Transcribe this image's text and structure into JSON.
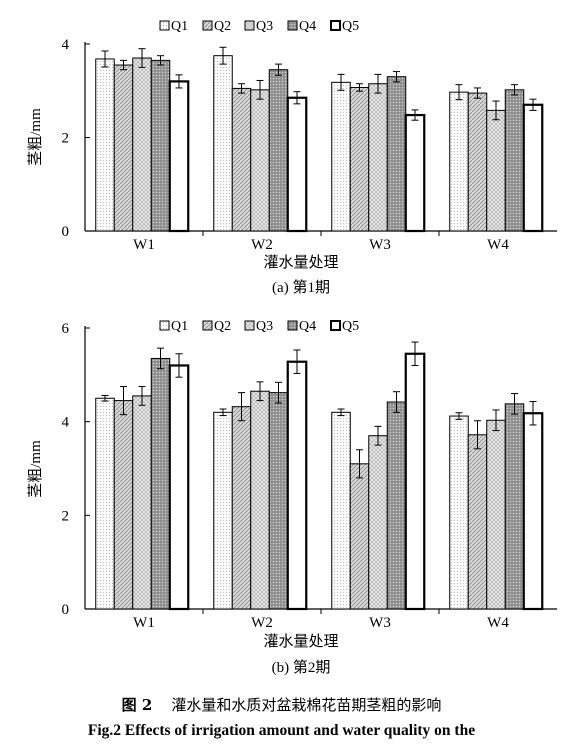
{
  "colors": {
    "Q1": "#ffffff",
    "Q2": "#d4d4d4",
    "Q3": "#e2e2e2",
    "Q4": "#a8a8a8",
    "Q5": "#ffffff"
  },
  "chart_data": [
    {
      "type": "bar",
      "panel": "a",
      "caption": "(a) 第1期",
      "xlabel": "灌水量处理",
      "ylabel": "茎粗/mm",
      "categories": [
        "W1",
        "W2",
        "W3",
        "W4"
      ],
      "ylim": [
        0,
        4
      ],
      "yticks": [
        0,
        2,
        4
      ],
      "legend_position": "top",
      "series": [
        {
          "name": "Q1",
          "values": [
            3.68,
            3.75,
            3.18,
            2.97
          ],
          "errors": [
            0.17,
            0.18,
            0.17,
            0.16
          ]
        },
        {
          "name": "Q2",
          "values": [
            3.55,
            3.05,
            3.07,
            2.95
          ],
          "errors": [
            0.1,
            0.1,
            0.08,
            0.11
          ]
        },
        {
          "name": "Q3",
          "values": [
            3.7,
            3.02,
            3.15,
            2.58
          ],
          "errors": [
            0.2,
            0.2,
            0.2,
            0.2
          ]
        },
        {
          "name": "Q4",
          "values": [
            3.65,
            3.45,
            3.3,
            3.02
          ],
          "errors": [
            0.1,
            0.12,
            0.11,
            0.11
          ]
        },
        {
          "name": "Q5",
          "values": [
            3.2,
            2.85,
            2.48,
            2.7
          ],
          "errors": [
            0.14,
            0.13,
            0.11,
            0.12
          ]
        }
      ]
    },
    {
      "type": "bar",
      "panel": "b",
      "caption": "(b) 第2期",
      "xlabel": "灌水量处理",
      "ylabel": "茎粗/mm",
      "categories": [
        "W1",
        "W2",
        "W3",
        "W4"
      ],
      "ylim": [
        0,
        6
      ],
      "yticks": [
        0,
        2,
        4,
        6
      ],
      "legend_position": "top",
      "series": [
        {
          "name": "Q1",
          "values": [
            4.5,
            4.2,
            4.2,
            4.12
          ],
          "errors": [
            0.06,
            0.07,
            0.07,
            0.07
          ]
        },
        {
          "name": "Q2",
          "values": [
            4.45,
            4.32,
            3.1,
            3.72
          ],
          "errors": [
            0.3,
            0.3,
            0.3,
            0.3
          ]
        },
        {
          "name": "Q3",
          "values": [
            4.55,
            4.65,
            3.7,
            4.03
          ],
          "errors": [
            0.2,
            0.2,
            0.2,
            0.22
          ]
        },
        {
          "name": "Q4",
          "values": [
            5.35,
            4.62,
            4.42,
            4.38
          ],
          "errors": [
            0.22,
            0.22,
            0.22,
            0.22
          ]
        },
        {
          "name": "Q5",
          "values": [
            5.2,
            5.28,
            5.45,
            4.18
          ],
          "errors": [
            0.25,
            0.25,
            0.25,
            0.25
          ]
        }
      ]
    }
  ],
  "caption": {
    "figure_label": "图 2",
    "figure_text": "灌水量和水质对盆栽棉花苗期茎粗的影响",
    "english": "Fig.2 Effects of irrigation amount and water quality on the"
  }
}
